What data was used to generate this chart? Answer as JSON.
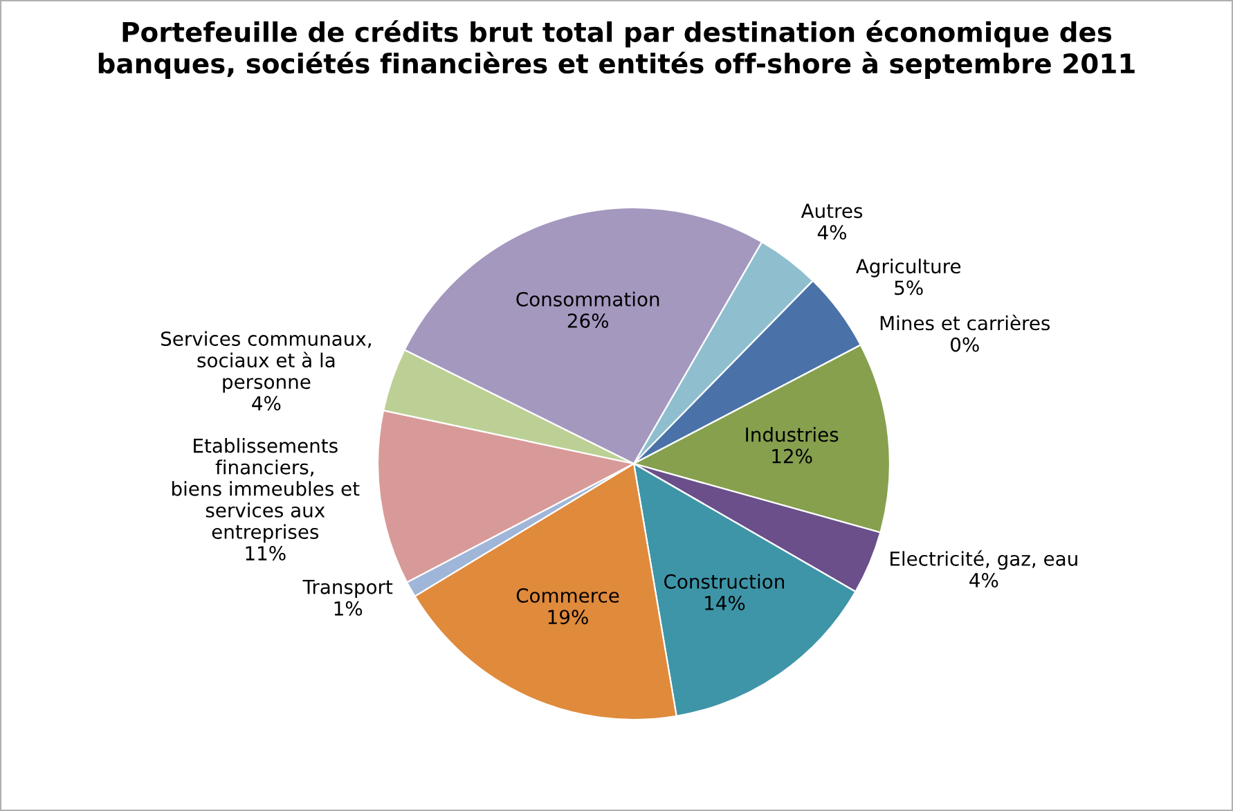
{
  "chart_data": {
    "type": "pie",
    "title": "Portefeuille de crédits brut total par destination économique des\nbanques, sociétés financières et entités off-shore à septembre 2011",
    "categories": [
      "Autres",
      "Agriculture",
      "Mines et carrières",
      "Industries",
      "Electricité, gaz, eau",
      "Construction",
      "Commerce",
      "Transport",
      "Etablissements\nfinanciers,\nbiens immeubles et\nservices aux\nentreprises",
      "Services communaux,\nsociaux et à la\npersonne",
      "Consommation"
    ],
    "values": [
      4,
      5,
      0,
      12,
      4,
      14,
      19,
      1,
      11,
      4,
      26
    ],
    "colors": [
      "#8fbfcf",
      "#4a72a8",
      "#b24a48",
      "#86a04e",
      "#6a4f8a",
      "#3e95a8",
      "#e08a3c",
      "#9fb6d8",
      "#d89a98",
      "#bcd096",
      "#a498bf"
    ],
    "value_labels": [
      "4%",
      "5%",
      "0%",
      "12%",
      "4%",
      "14%",
      "19%",
      "1%",
      "11%",
      "4%",
      "26%"
    ],
    "legend": false
  }
}
